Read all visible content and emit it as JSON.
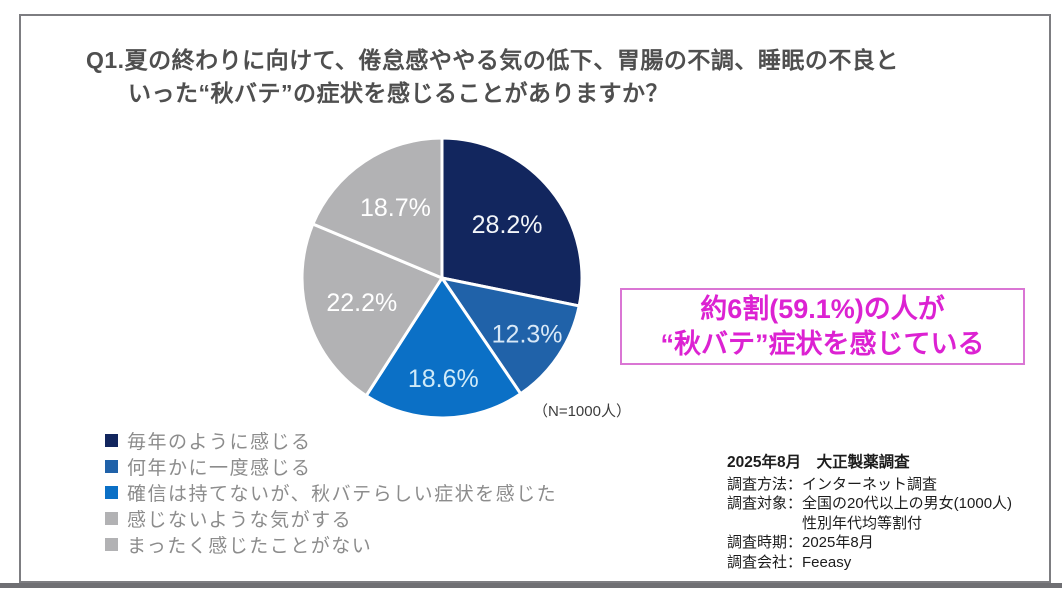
{
  "title": {
    "line1": "Q1.夏の終わりに向けて、倦怠感ややる気の低下、胃腸の不調、睡眠の不良と",
    "line2": "いった“秋バテ”の症状を感じることがありますか？"
  },
  "chart_data": {
    "type": "pie",
    "categories": [
      "毎年のように感じる",
      "何年かに一度感じる",
      "確信は持てないが、秋バテらしい症状を感じた",
      "感じないような気がする",
      "まったく感じたことがない"
    ],
    "values": [
      28.2,
      12.3,
      18.6,
      22.2,
      18.7
    ],
    "value_labels": [
      "28.2%",
      "12.3%",
      "18.6%",
      "22.2%",
      "18.7%"
    ],
    "colors": [
      "#12265e",
      "#2062a9",
      "#0b70c6",
      "#b2b2b4",
      "#b2b2b4"
    ],
    "label_colors": [
      "#f2f5f9",
      "#d8e8f7",
      "#cfeaf8",
      "#ffffff",
      "#ffffff"
    ],
    "label_radius": [
      0.6,
      0.73,
      0.72,
      0.6,
      0.6
    ],
    "start_angle_deg": 0,
    "direction": "clockwise",
    "stroke_color": "#ffffff",
    "note": "（N=1000人）",
    "title": "Q1.夏の終わりに向けて、倦怠感ややる気の低下、胃腸の不調、睡眠の不良といった“秋バテ”の症状を感じることがありますか？",
    "legend_position": "bottom-left"
  },
  "legend": {
    "items": [
      {
        "label": "毎年のように感じる",
        "color": "#12265e"
      },
      {
        "label": "何年かに一度感じる",
        "color": "#2062a9"
      },
      {
        "label": "確信は持てないが、秋バテらしい症状を感じた",
        "color": "#0b70c6"
      },
      {
        "label": "感じないような気がする",
        "color": "#b2b2b4"
      },
      {
        "label": "まったく感じたことがない",
        "color": "#b2b2b4"
      }
    ]
  },
  "callout": {
    "line1": "約6割(59.1%)の人が",
    "line2": "“秋バテ”症状を感じている",
    "text_color": "#dc22d2",
    "border_color": "#da76d4"
  },
  "survey_info": {
    "heading": "2025年8月　大正製薬調査",
    "lines": [
      "調査方法：インターネット調査",
      "調査対象：全国の20代以上の男女(1000人)",
      "　　　　　性別年代均等割付",
      "調査時期：2025年8月",
      "調査会社：Feeasy"
    ]
  }
}
